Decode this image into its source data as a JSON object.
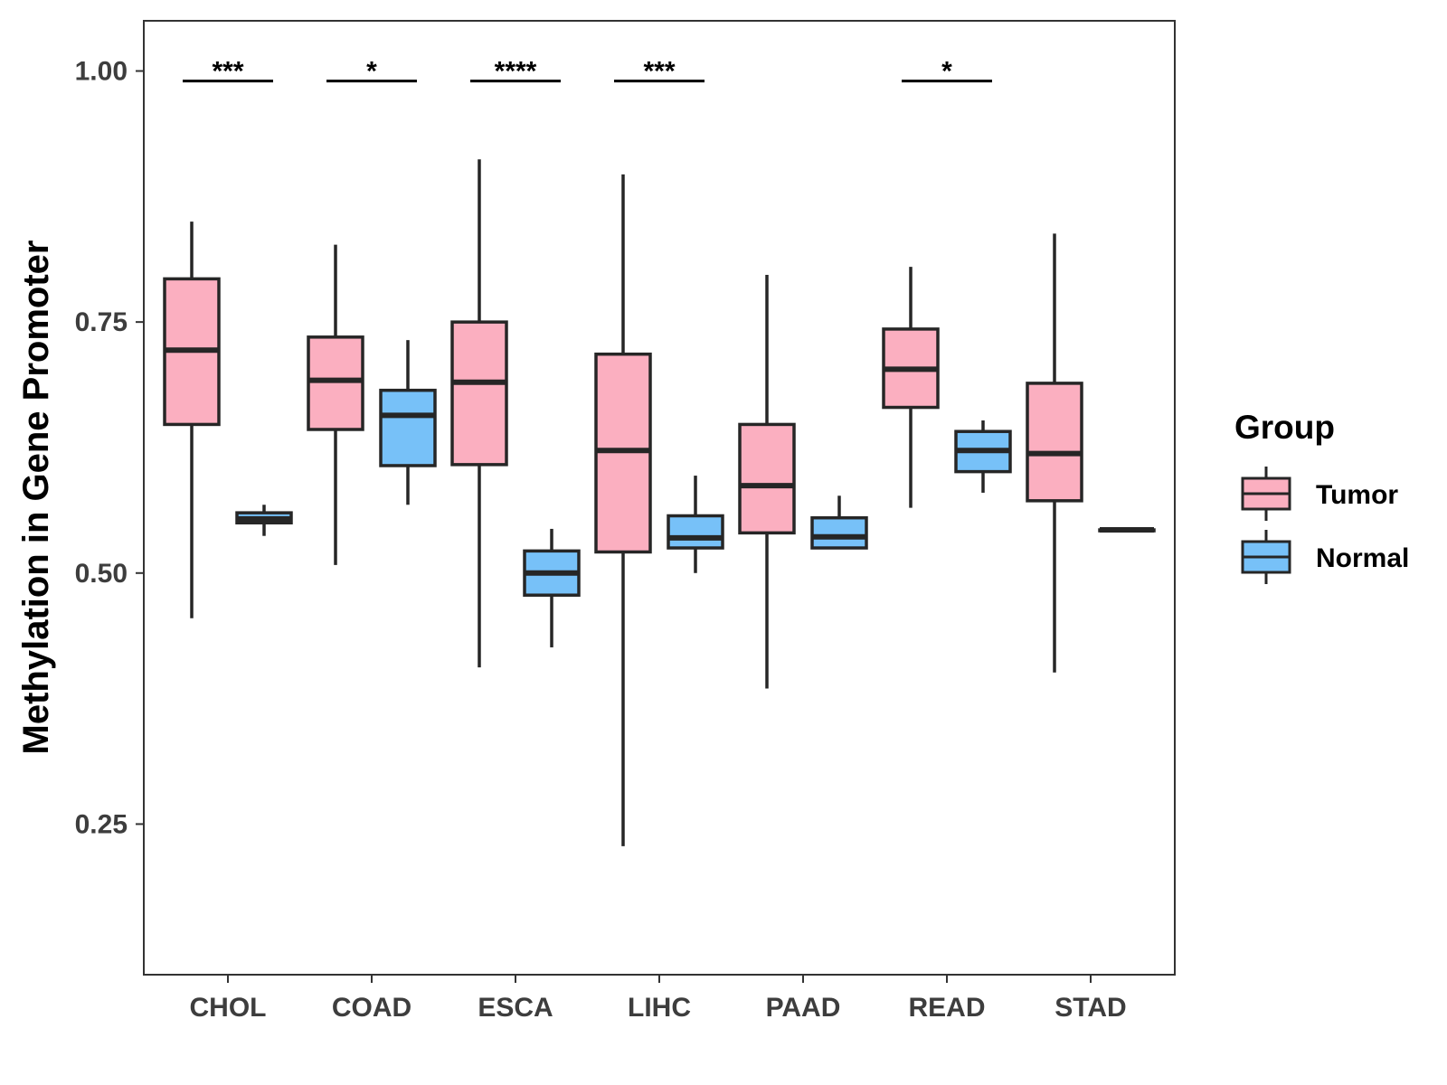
{
  "chart_data": {
    "type": "boxplot",
    "title": "",
    "xlabel": "",
    "ylabel": "Methylation in Gene Promoter",
    "ylim": [
      0.1,
      1.05
    ],
    "yticks": [
      0.25,
      0.5,
      0.75,
      1.0
    ],
    "ytick_labels": [
      "0.25",
      "0.50",
      "0.75",
      "1.00"
    ],
    "categories": [
      "CHOL",
      "COAD",
      "ESCA",
      "LIHC",
      "PAAD",
      "READ",
      "STAD"
    ],
    "legend": {
      "title": "Group",
      "position": "right",
      "entries": [
        {
          "name": "Tumor",
          "color": "#FBAFC0"
        },
        {
          "name": "Normal",
          "color": "#77C1F8"
        }
      ]
    },
    "series": [
      {
        "name": "Tumor",
        "color": "#FBAFC0",
        "boxes": [
          {
            "category": "CHOL",
            "min": 0.455,
            "q1": 0.648,
            "median": 0.722,
            "q3": 0.793,
            "max": 0.85
          },
          {
            "category": "COAD",
            "min": 0.508,
            "q1": 0.643,
            "median": 0.692,
            "q3": 0.735,
            "max": 0.827
          },
          {
            "category": "ESCA",
            "min": 0.406,
            "q1": 0.608,
            "median": 0.69,
            "q3": 0.75,
            "max": 0.912
          },
          {
            "category": "LIHC",
            "min": 0.228,
            "q1": 0.521,
            "median": 0.622,
            "q3": 0.718,
            "max": 0.897
          },
          {
            "category": "PAAD",
            "min": 0.385,
            "q1": 0.54,
            "median": 0.587,
            "q3": 0.648,
            "max": 0.797
          },
          {
            "category": "READ",
            "min": 0.565,
            "q1": 0.665,
            "median": 0.703,
            "q3": 0.743,
            "max": 0.805
          },
          {
            "category": "STAD",
            "min": 0.401,
            "q1": 0.572,
            "median": 0.619,
            "q3": 0.689,
            "max": 0.838
          }
        ]
      },
      {
        "name": "Normal",
        "color": "#77C1F8",
        "boxes": [
          {
            "category": "CHOL",
            "min": 0.537,
            "q1": 0.55,
            "median": 0.554,
            "q3": 0.56,
            "max": 0.568
          },
          {
            "category": "COAD",
            "min": 0.568,
            "q1": 0.607,
            "median": 0.657,
            "q3": 0.682,
            "max": 0.732
          },
          {
            "category": "ESCA",
            "min": 0.426,
            "q1": 0.478,
            "median": 0.5,
            "q3": 0.522,
            "max": 0.544
          },
          {
            "category": "LIHC",
            "min": 0.5,
            "q1": 0.525,
            "median": 0.535,
            "q3": 0.557,
            "max": 0.597
          },
          {
            "category": "PAAD",
            "min": 0.525,
            "q1": 0.525,
            "median": 0.536,
            "q3": 0.555,
            "max": 0.577
          },
          {
            "category": "READ",
            "min": 0.58,
            "q1": 0.601,
            "median": 0.622,
            "q3": 0.641,
            "max": 0.652
          },
          {
            "category": "STAD",
            "min": 0.543,
            "q1": 0.543,
            "median": 0.543,
            "q3": 0.543,
            "max": 0.543
          }
        ]
      }
    ],
    "significance": [
      {
        "category": "CHOL",
        "label": "***",
        "y": 0.99
      },
      {
        "category": "COAD",
        "label": "*",
        "y": 0.99
      },
      {
        "category": "ESCA",
        "label": "****",
        "y": 0.99
      },
      {
        "category": "LIHC",
        "label": "***",
        "y": 0.99
      },
      {
        "category": "READ",
        "label": "*",
        "y": 0.99
      }
    ]
  }
}
